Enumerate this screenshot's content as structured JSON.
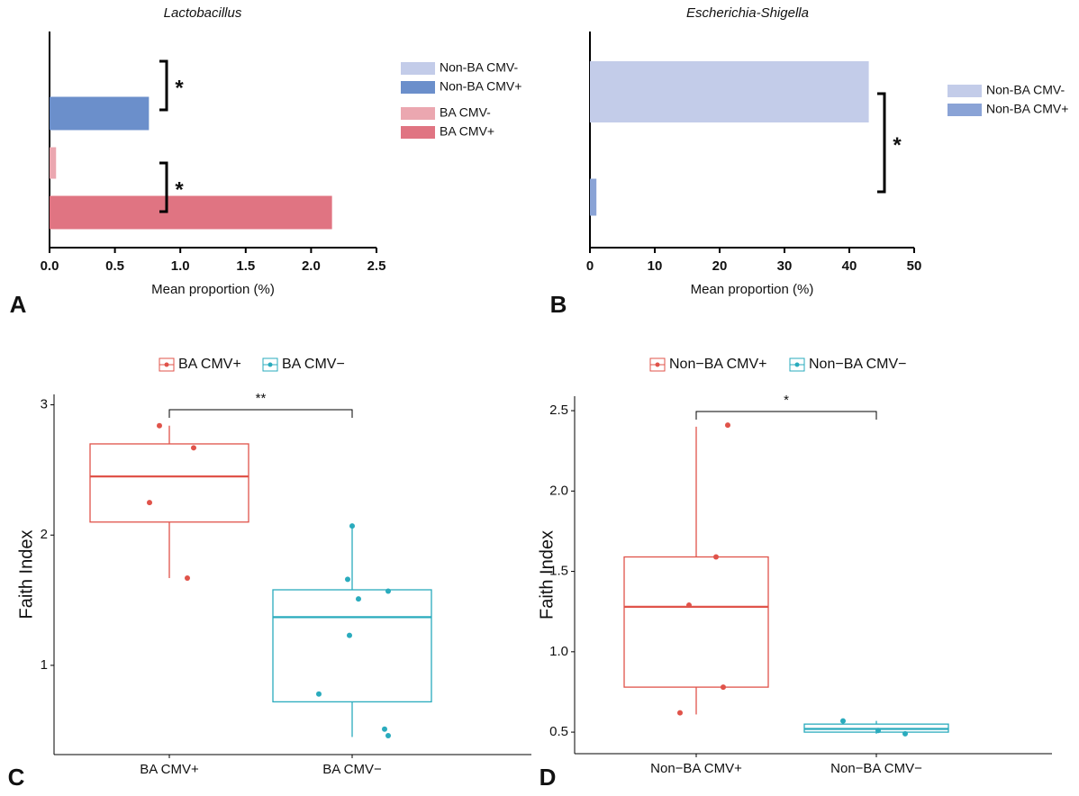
{
  "chart_data": [
    {
      "type": "hbar",
      "panel_label": "A",
      "title": "Lactobacillus",
      "xlabel": "Mean proportion (%)",
      "xlim": [
        0,
        2.5
      ],
      "xticks": [
        {
          "value": 0,
          "label": "0.0"
        },
        0.5,
        {
          "value": 1,
          "label": "1.0"
        },
        1.5,
        {
          "value": 2,
          "label": "2.0"
        },
        2.5
      ],
      "series": [
        {
          "name": "Non-BA CMV-",
          "color": "#c3cce9",
          "values": [
            0
          ]
        },
        {
          "name": "Non-BA CMV+",
          "color": "#6b8fcb",
          "values": [
            0.76
          ]
        },
        {
          "name": "BA CMV-",
          "color": "#eba7b0",
          "values": [
            0.05
          ]
        },
        {
          "name": "BA CMV+",
          "color": "#e07482",
          "values": [
            2.16
          ]
        }
      ],
      "annotations": [
        "*",
        "*"
      ]
    },
    {
      "type": "hbar",
      "panel_label": "B",
      "title": "Escherichia-Shigella",
      "xlabel": "Mean proportion (%)",
      "xlim": [
        0,
        50
      ],
      "xticks": [
        0,
        10,
        20,
        30,
        40,
        50
      ],
      "series": [
        {
          "name": "Non-BA CMV-",
          "color": "#c3cce9",
          "values": [
            43
          ]
        },
        {
          "name": "Non-BA CMV+",
          "color": "#8aa3d6",
          "values": [
            1
          ]
        }
      ],
      "annotations": [
        "*"
      ]
    },
    {
      "type": "box",
      "panel_label": "C",
      "ylabel": "Faith Index",
      "ylim": [
        0.315,
        3.08
      ],
      "yticks": [
        1,
        2,
        3
      ],
      "series": [
        {
          "name": "BA CMV+",
          "color": "#e0534a",
          "box": {
            "min": 1.67,
            "q1": 2.1,
            "median": 2.45,
            "q3": 2.7,
            "max": 2.84
          },
          "points": [
            2.84,
            2.67,
            2.25,
            1.67
          ]
        },
        {
          "name": "BA CMV−",
          "color": "#2aabbd",
          "box": {
            "min": 0.45,
            "q1": 0.72,
            "median": 1.37,
            "q3": 1.58,
            "max": 2.07
          },
          "points": [
            2.07,
            1.66,
            1.51,
            1.57,
            1.23,
            0.78,
            0.51,
            0.46
          ]
        }
      ],
      "annotations": [
        "**"
      ]
    },
    {
      "type": "box",
      "panel_label": "D",
      "ylabel": "Faith Index",
      "ylim": [
        0.366,
        2.59
      ],
      "yticks": [
        0.5,
        {
          "value": 1,
          "label": "1.0"
        },
        1.5,
        {
          "value": 2,
          "label": "2.0"
        },
        2.5
      ],
      "series": [
        {
          "name": "Non−BA CMV+",
          "color": "#e0534a",
          "box": {
            "min": 0.61,
            "q1": 0.78,
            "median": 1.28,
            "q3": 1.59,
            "max": 2.4
          },
          "points": [
            2.41,
            1.59,
            1.29,
            0.78,
            0.62
          ]
        },
        {
          "name": "Non−BA CMV−",
          "color": "#2aabbd",
          "box": {
            "min": 0.49,
            "q1": 0.5,
            "median": 0.52,
            "q3": 0.55,
            "max": 0.57
          },
          "points": [
            0.57,
            0.51,
            0.49
          ]
        }
      ],
      "annotations": [
        "*"
      ]
    }
  ]
}
